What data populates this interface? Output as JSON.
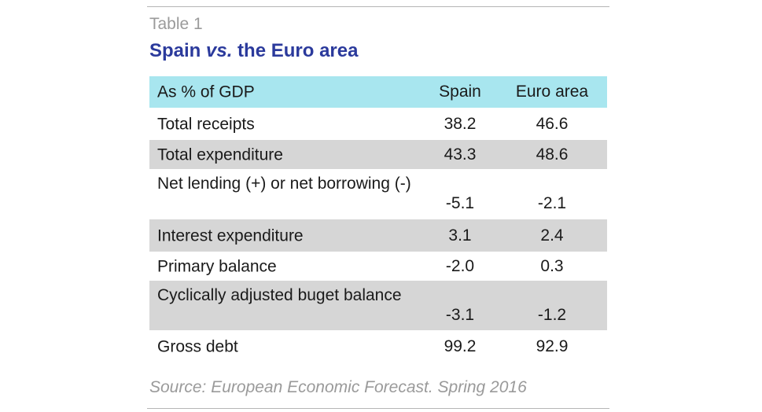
{
  "table_label": "Table 1",
  "title": {
    "pre": "Spain ",
    "em": "vs.",
    "post": " the Euro area"
  },
  "columns": [
    "As % of GDP",
    "Spain",
    "Euro area"
  ],
  "rows": [
    {
      "label": "Total receipts",
      "spain": "38.2",
      "euro": "46.6"
    },
    {
      "label": "Total expenditure",
      "spain": "43.3",
      "euro": "48.6"
    },
    {
      "label": "Net lending (+) or net borrowing (-)",
      "spain": "-5.1",
      "euro": "-2.1"
    },
    {
      "label": "Interest expenditure",
      "spain": "3.1",
      "euro": "2.4"
    },
    {
      "label": "Primary balance",
      "spain": "-2.0",
      "euro": "0.3"
    },
    {
      "label": "Cyclically adjusted buget balance",
      "spain": "-3.1",
      "euro": "-1.2"
    },
    {
      "label": "Gross debt",
      "spain": "99.2",
      "euro": "92.9"
    }
  ],
  "source": "Source: European Economic Forecast. Spring 2016",
  "colors": {
    "title": "#2b3a9c",
    "header_bg": "#a8e6ef",
    "shaded_bg": "#d6d6d6",
    "muted_text": "#9a9a9a"
  }
}
